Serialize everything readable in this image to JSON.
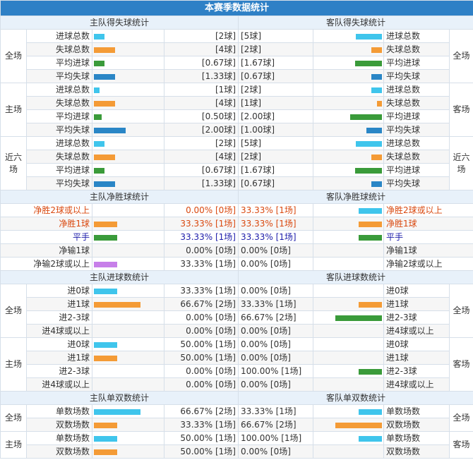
{
  "title": "本赛季数据统计",
  "sections": [
    {
      "home_title": "主队得失球统计",
      "away_title": "客队得失球统计",
      "colors": [
        "#3fc5ec",
        "#f49b36",
        "#3a9b3a",
        "#2a86c6"
      ],
      "groups": [
        {
          "home_label": "全场",
          "away_label": "全场",
          "rows": [
            {
              "label": "进球总数",
              "home": {
                "text": "[2球]",
                "value": 2
              },
              "away": {
                "text": "[5球]",
                "value": 5
              }
            },
            {
              "label": "失球总数",
              "home": {
                "text": "[4球]",
                "value": 4
              },
              "away": {
                "text": "[2球]",
                "value": 2
              }
            },
            {
              "label": "平均进球",
              "home": {
                "text": "[0.67球]",
                "value": 0.67
              },
              "away": {
                "text": "[1.67球]",
                "value": 1.67
              }
            },
            {
              "label": "平均失球",
              "home": {
                "text": "[1.33球]",
                "value": 1.33
              },
              "away": {
                "text": "[0.67球]",
                "value": 0.67
              }
            }
          ]
        },
        {
          "home_label": "主场",
          "away_label": "客场",
          "rows": [
            {
              "label": "进球总数",
              "home": {
                "text": "[1球]",
                "value": 1
              },
              "away": {
                "text": "[2球]",
                "value": 2
              }
            },
            {
              "label": "失球总数",
              "home": {
                "text": "[4球]",
                "value": 4
              },
              "away": {
                "text": "[1球]",
                "value": 1
              }
            },
            {
              "label": "平均进球",
              "home": {
                "text": "[0.50球]",
                "value": 0.5
              },
              "away": {
                "text": "[2.00球]",
                "value": 2
              }
            },
            {
              "label": "平均失球",
              "home": {
                "text": "[2.00球]",
                "value": 2
              },
              "away": {
                "text": "[1.00球]",
                "value": 1
              }
            }
          ]
        },
        {
          "home_label": "近六场",
          "away_label": "近六场",
          "rows": [
            {
              "label": "进球总数",
              "home": {
                "text": "[2球]",
                "value": 2
              },
              "away": {
                "text": "[5球]",
                "value": 5
              }
            },
            {
              "label": "失球总数",
              "home": {
                "text": "[4球]",
                "value": 4
              },
              "away": {
                "text": "[2球]",
                "value": 2
              }
            },
            {
              "label": "平均进球",
              "home": {
                "text": "[0.67球]",
                "value": 0.67
              },
              "away": {
                "text": "[1.67球]",
                "value": 1.67
              }
            },
            {
              "label": "平均失球",
              "home": {
                "text": "[1.33球]",
                "value": 1.33
              },
              "away": {
                "text": "[0.67球]",
                "value": 0.67
              }
            }
          ]
        }
      ]
    },
    {
      "home_title": "主队净胜球统计",
      "away_title": "客队净胜球统计",
      "colors": [
        "#3fc5ec",
        "#f49b36",
        "#3a9b3a",
        "#2a86c6",
        "#c77fe9"
      ],
      "groups": [
        {
          "rows": [
            {
              "label": "净胜2球或以上",
              "home": {
                "text": "0.00% [0场]",
                "pct": 0,
                "count": 0
              },
              "away": {
                "text": "33.33% [1场]",
                "pct": 33.33,
                "count": 1
              }
            },
            {
              "label": "净胜1球",
              "home": {
                "text": "33.33% [1场]",
                "pct": 33.33,
                "count": 1
              },
              "away": {
                "text": "33.33% [1场]",
                "pct": 33.33,
                "count": 1
              }
            },
            {
              "label": "平手",
              "home": {
                "text": "33.33% [1场]",
                "pct": 33.33,
                "count": 1
              },
              "away": {
                "text": "33.33% [1场]",
                "pct": 33.33,
                "count": 1
              }
            },
            {
              "label": "净输1球",
              "home": {
                "text": "0.00% [0场]",
                "pct": 0,
                "count": 0
              },
              "away": {
                "text": "0.00% [0场]",
                "pct": 0,
                "count": 0
              }
            },
            {
              "label": "净输2球或以上",
              "home": {
                "text": "33.33% [1场]",
                "pct": 33.33,
                "count": 1
              },
              "away": {
                "text": "0.00% [0场]",
                "pct": 0,
                "count": 0
              }
            }
          ]
        }
      ]
    },
    {
      "home_title": "主队进球数统计",
      "away_title": "客队进球数统计",
      "colors": [
        "#3fc5ec",
        "#f49b36",
        "#3a9b3a",
        "#2a86c6"
      ],
      "groups": [
        {
          "home_label": "全场",
          "away_label": "全场",
          "rows": [
            {
              "label": "进0球",
              "home": {
                "text": "33.33% [1场]",
                "pct": 33.33,
                "count": 1
              },
              "away": {
                "text": "0.00% [0场]",
                "pct": 0,
                "count": 0
              }
            },
            {
              "label": "进1球",
              "home": {
                "text": "66.67% [2场]",
                "pct": 66.67,
                "count": 2
              },
              "away": {
                "text": "33.33% [1场]",
                "pct": 33.33,
                "count": 1
              }
            },
            {
              "label": "进2-3球",
              "home": {
                "text": "0.00% [0场]",
                "pct": 0,
                "count": 0
              },
              "away": {
                "text": "66.67% [2场]",
                "pct": 66.67,
                "count": 2
              }
            },
            {
              "label": "进4球或以上",
              "home": {
                "text": "0.00% [0场]",
                "pct": 0,
                "count": 0
              },
              "away": {
                "text": "0.00% [0场]",
                "pct": 0,
                "count": 0
              }
            }
          ]
        },
        {
          "home_label": "主场",
          "away_label": "客场",
          "rows": [
            {
              "label": "进0球",
              "home": {
                "text": "50.00% [1场]",
                "pct": 50,
                "count": 1
              },
              "away": {
                "text": "0.00% [0场]",
                "pct": 0,
                "count": 0
              }
            },
            {
              "label": "进1球",
              "home": {
                "text": "50.00% [1场]",
                "pct": 50,
                "count": 1
              },
              "away": {
                "text": "0.00% [0场]",
                "pct": 0,
                "count": 0
              }
            },
            {
              "label": "进2-3球",
              "home": {
                "text": "0.00% [0场]",
                "pct": 0,
                "count": 0
              },
              "away": {
                "text": "100.00% [1场]",
                "pct": 100,
                "count": 1
              }
            },
            {
              "label": "进4球或以上",
              "home": {
                "text": "0.00% [0场]",
                "pct": 0,
                "count": 0
              },
              "away": {
                "text": "0.00% [0场]",
                "pct": 0,
                "count": 0
              }
            }
          ]
        }
      ]
    },
    {
      "home_title": "主队单双数统计",
      "away_title": "客队单双数统计",
      "colors": [
        "#3fc5ec",
        "#f49b36"
      ],
      "groups": [
        {
          "home_label": "全场",
          "away_label": "全场",
          "rows": [
            {
              "label": "单数场数",
              "home": {
                "text": "66.67% [2场]",
                "pct": 66.67,
                "count": 2
              },
              "away": {
                "text": "33.33% [1场]",
                "pct": 33.33,
                "count": 1
              }
            },
            {
              "label": "双数场数",
              "home": {
                "text": "33.33% [1场]",
                "pct": 33.33,
                "count": 1
              },
              "away": {
                "text": "66.67% [2场]",
                "pct": 66.67,
                "count": 2
              }
            }
          ]
        },
        {
          "home_label": "主场",
          "away_label": "客场",
          "rows": [
            {
              "label": "单数场数",
              "home": {
                "text": "50.00% [1场]",
                "pct": 50,
                "count": 1
              },
              "away": {
                "text": "100.00% [1场]",
                "pct": 100,
                "count": 1
              }
            },
            {
              "label": "双数场数",
              "home": {
                "text": "50.00% [1场]",
                "pct": 50,
                "count": 1
              },
              "away": {
                "text": "0.00% [0场]",
                "pct": 0,
                "count": 0
              }
            }
          ]
        }
      ]
    }
  ]
}
